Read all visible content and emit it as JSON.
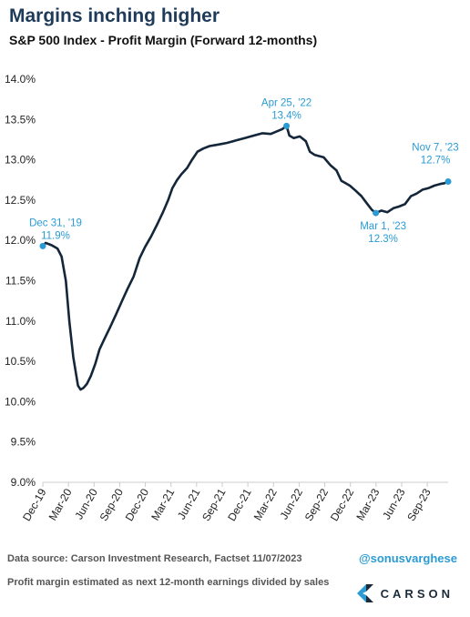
{
  "header": {
    "title": "Margins inching higher",
    "subtitle": "S&P 500 Index - Profit Margin (Forward 12-months)"
  },
  "footer": {
    "source": "Data source: Carson Investment Research, Factset     11/07/2023",
    "handle": "@sonusvarghese",
    "note": "Profit margin estimated as next 12-month earnings divided by sales",
    "logo_text": "CARSON",
    "logo_icon": "carson-logo-icon"
  },
  "colors": {
    "line": "#14263a",
    "annotation": "#2a9bd4",
    "axis": "#cccccc"
  },
  "chart_data": {
    "type": "line",
    "ylim": [
      9.0,
      14.0
    ],
    "yticks": [
      "9.0%",
      "9.5%",
      "10.0%",
      "10.5%",
      "11.0%",
      "11.5%",
      "12.0%",
      "12.5%",
      "13.0%",
      "13.5%",
      "14.0%"
    ],
    "ytick_values": [
      9.0,
      9.5,
      10.0,
      10.5,
      11.0,
      11.5,
      12.0,
      12.5,
      13.0,
      13.5,
      14.0
    ],
    "xticks": [
      "Dec-19",
      "Mar-20",
      "Jun-20",
      "Sep-20",
      "Dec-20",
      "Mar-21",
      "Jun-21",
      "Sep-21",
      "Dec-21",
      "Mar-22",
      "Jun-22",
      "Sep-22",
      "Dec-22",
      "Mar-23",
      "Jun-23",
      "Sep-23"
    ],
    "xlim": [
      "2019-12-31",
      "2023-11-07"
    ],
    "series": [
      {
        "x": [
          "2019-12-31",
          "2020-01-10",
          "2020-01-31",
          "2020-02-20",
          "2020-03-05",
          "2020-03-20",
          "2020-04-01",
          "2020-04-15",
          "2020-05-01",
          "2020-05-10",
          "2020-05-20",
          "2020-06-01",
          "2020-06-15",
          "2020-07-01",
          "2020-07-15",
          "2020-08-01",
          "2020-08-20",
          "2020-09-10",
          "2020-10-01",
          "2020-10-20",
          "2020-11-10",
          "2020-12-01",
          "2020-12-20",
          "2021-01-10",
          "2021-01-31",
          "2021-02-20",
          "2021-03-10",
          "2021-03-25",
          "2021-04-10",
          "2021-04-25",
          "2021-05-15",
          "2021-06-01",
          "2021-06-20",
          "2021-07-10",
          "2021-08-01",
          "2021-09-01",
          "2021-10-01",
          "2021-11-01",
          "2021-12-01",
          "2022-01-01",
          "2022-02-01",
          "2022-03-01",
          "2022-04-10",
          "2022-04-25",
          "2022-05-05",
          "2022-05-20",
          "2022-06-10",
          "2022-07-01",
          "2022-07-15",
          "2022-08-01",
          "2022-09-01",
          "2022-09-25",
          "2022-10-15",
          "2022-11-01",
          "2022-12-01",
          "2022-12-20",
          "2023-01-10",
          "2023-01-31",
          "2023-02-15",
          "2023-03-01",
          "2023-03-20",
          "2023-04-10",
          "2023-05-01",
          "2023-05-20",
          "2023-06-10",
          "2023-07-01",
          "2023-07-20",
          "2023-08-10",
          "2023-09-01",
          "2023-09-20",
          "2023-10-10",
          "2023-10-25",
          "2023-11-07"
        ],
        "y": [
          11.93,
          11.97,
          11.94,
          11.9,
          11.8,
          11.5,
          11.0,
          10.55,
          10.2,
          10.15,
          10.17,
          10.22,
          10.32,
          10.48,
          10.65,
          10.78,
          10.92,
          11.08,
          11.25,
          11.4,
          11.55,
          11.78,
          11.92,
          12.05,
          12.2,
          12.35,
          12.5,
          12.65,
          12.75,
          12.82,
          12.9,
          13.0,
          13.1,
          13.14,
          13.17,
          13.19,
          13.21,
          13.24,
          13.27,
          13.3,
          13.33,
          13.32,
          13.38,
          13.42,
          13.3,
          13.27,
          13.29,
          13.23,
          13.1,
          13.06,
          13.03,
          12.93,
          12.87,
          12.74,
          12.68,
          12.62,
          12.55,
          12.45,
          12.38,
          12.34,
          12.37,
          12.35,
          12.4,
          12.42,
          12.45,
          12.55,
          12.58,
          12.63,
          12.65,
          12.68,
          12.7,
          12.71,
          12.73
        ]
      }
    ],
    "annotations": [
      {
        "date": "2019-12-31",
        "value": 11.93,
        "label": "Dec 31, '19",
        "value_label": "11.9%",
        "placement": "above-right"
      },
      {
        "date": "2022-04-25",
        "value": 13.42,
        "label": "Apr 25, '22",
        "value_label": "13.4%",
        "placement": "above"
      },
      {
        "date": "2023-03-01",
        "value": 12.34,
        "label": "Mar 1, '23",
        "value_label": "12.3%",
        "placement": "below"
      },
      {
        "date": "2023-11-07",
        "value": 12.73,
        "label": "Nov 7, '23",
        "value_label": "12.7%",
        "placement": "above-left"
      }
    ]
  }
}
